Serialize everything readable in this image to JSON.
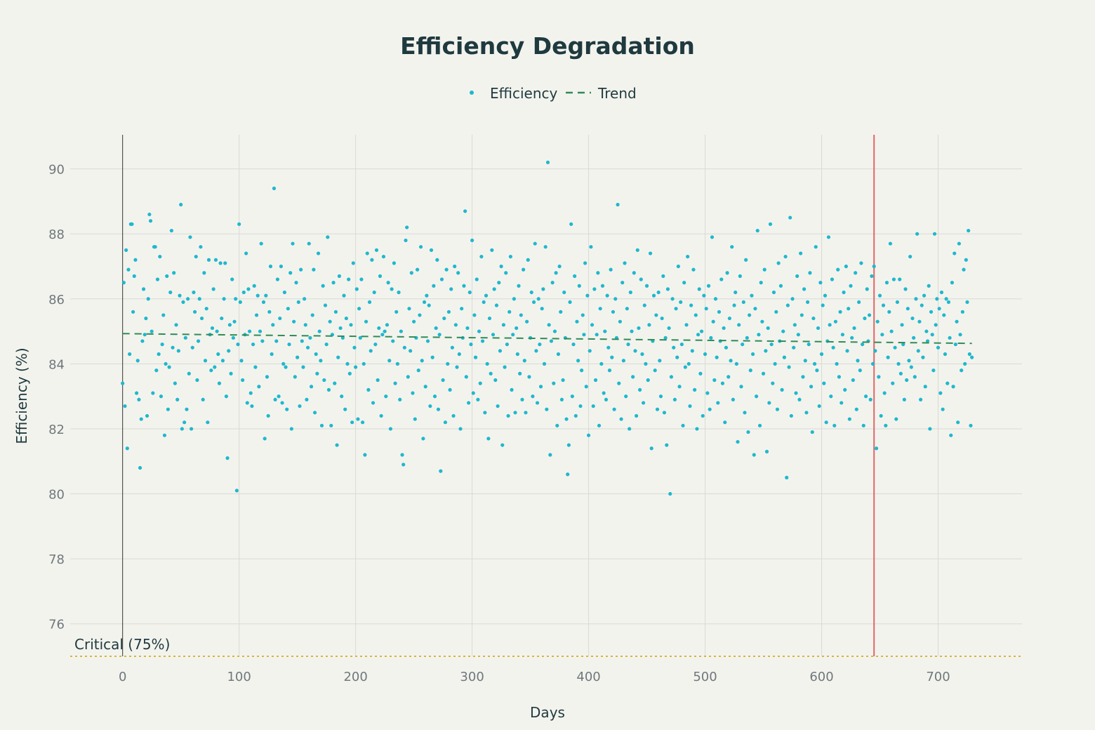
{
  "colors": {
    "background": "#f3f3ee",
    "points": "#1fb8cd",
    "trend": "#2e8b57",
    "marker_line": "#e06666",
    "critical": "#d2b83c",
    "text": "#1f3a3f",
    "grid": "#d9dad5"
  },
  "chart_data": {
    "type": "scatter",
    "title": "Efficiency Degradation",
    "xlabel": "Days",
    "ylabel": "Efficiency (%)",
    "xlim": [
      -45,
      772
    ],
    "ylim": [
      75,
      91.05
    ],
    "xticks": [
      0,
      100,
      200,
      300,
      400,
      500,
      600,
      700
    ],
    "yticks": [
      76,
      78,
      80,
      82,
      84,
      86,
      88,
      90
    ],
    "grid": true,
    "legend": {
      "placement": "top-center",
      "entries": [
        "Efficiency",
        "Trend"
      ]
    },
    "series": [
      {
        "name": "Efficiency",
        "mode": "markers",
        "x_start": 0,
        "x_step": 1,
        "y": [
          83.4,
          86.5,
          82.7,
          87.5,
          81.4,
          86.9,
          84.3,
          88.3,
          88.3,
          85.6,
          86.7,
          87.2,
          83.1,
          84.1,
          82.9,
          80.8,
          82.3,
          84.7,
          86.3,
          84.9,
          85.4,
          82.4,
          86.0,
          88.6,
          88.4,
          85.0,
          83.1,
          87.6,
          87.6,
          83.8,
          86.6,
          84.3,
          87.3,
          83.0,
          84.6,
          85.5,
          81.8,
          84.0,
          86.7,
          82.6,
          83.9,
          86.2,
          88.1,
          84.5,
          86.8,
          83.4,
          85.2,
          82.9,
          84.4,
          86.1,
          88.9,
          82.0,
          85.9,
          82.2,
          84.8,
          82.6,
          86.0,
          83.7,
          87.9,
          82.0,
          84.5,
          86.2,
          85.6,
          87.3,
          83.5,
          84.7,
          86.0,
          87.6,
          85.4,
          82.9,
          86.8,
          84.1,
          85.7,
          82.2,
          87.2,
          84.9,
          83.8,
          85.1,
          86.3,
          83.9,
          87.2,
          85.0,
          84.3,
          83.4,
          87.1,
          85.4,
          84.1,
          86.0,
          87.1,
          83.0,
          81.1,
          84.4,
          85.2,
          83.7,
          86.6,
          84.8,
          85.3,
          86.0,
          80.1,
          84.6,
          88.3,
          85.9,
          84.1,
          83.5,
          86.2,
          84.9,
          87.4,
          82.8,
          86.3,
          85.0,
          83.1,
          82.7,
          84.6,
          86.4,
          83.9,
          85.5,
          86.1,
          83.3,
          85.0,
          87.7,
          84.7,
          85.9,
          81.7,
          86.1,
          83.6,
          82.4,
          85.6,
          87.0,
          84.3,
          85.2,
          89.4,
          82.9,
          84.7,
          86.6,
          83.0,
          85.4,
          87.0,
          82.8,
          84.0,
          86.2,
          83.9,
          82.6,
          85.7,
          84.6,
          86.8,
          82.0,
          87.7,
          85.3,
          83.6,
          86.5,
          84.2,
          85.9,
          82.7,
          86.9,
          84.7,
          83.9,
          86.0,
          85.2,
          82.9,
          84.5,
          87.7,
          84.8,
          83.3,
          85.5,
          86.9,
          82.5,
          84.3,
          83.7,
          87.4,
          85.0,
          84.1,
          82.1,
          86.4,
          83.5,
          85.8,
          84.6,
          87.9,
          83.2,
          85.3,
          82.1,
          84.9,
          86.5,
          83.4,
          85.6,
          81.5,
          84.2,
          86.7,
          85.1,
          83.0,
          84.8,
          86.1,
          82.6,
          85.4,
          84.0,
          86.6,
          83.7,
          85.2,
          82.2,
          87.1,
          84.5,
          83.9,
          86.3,
          82.3,
          85.7,
          84.8,
          86.6,
          82.2,
          84.0,
          81.2,
          85.3,
          87.4,
          83.2,
          85.9,
          84.4,
          87.2,
          82.8,
          86.2,
          84.6,
          87.5,
          83.5,
          85.1,
          86.7,
          82.4,
          84.9,
          87.3,
          85.0,
          83.0,
          85.2,
          86.5,
          84.1,
          82.0,
          86.3,
          84.7,
          87.1,
          83.4,
          85.6,
          84.0,
          86.2,
          82.9,
          85.0,
          81.2,
          80.9,
          84.5,
          87.8,
          88.2,
          83.6,
          85.7,
          84.4,
          86.8,
          83.1,
          85.3,
          82.3,
          84.8,
          86.9,
          83.8,
          85.5,
          87.6,
          84.1,
          81.7,
          85.9,
          83.3,
          86.1,
          84.7,
          85.8,
          82.7,
          87.5,
          84.2,
          86.4,
          83.0,
          85.1,
          87.2,
          82.6,
          84.9,
          80.7,
          86.6,
          83.5,
          85.4,
          82.2,
          86.9,
          84.0,
          85.6,
          83.2,
          86.3,
          84.5,
          82.4,
          87.0,
          85.2,
          83.9,
          86.8,
          84.3,
          82.0,
          85.7,
          84.8,
          86.4,
          88.7,
          83.6,
          85.1,
          82.8,
          86.2,
          84.6,
          87.8,
          83.1,
          85.5,
          84.2,
          86.6,
          82.9,
          85.0,
          83.4,
          87.3,
          84.7,
          85.9,
          82.5,
          86.1,
          84.0,
          81.7,
          85.4,
          83.7,
          87.5,
          84.9,
          86.3,
          83.5,
          85.8,
          82.7,
          86.5,
          84.4,
          87.0,
          81.5,
          85.2,
          83.9,
          86.8,
          84.6,
          82.4,
          85.6,
          87.3,
          83.2,
          84.9,
          86.0,
          82.5,
          85.1,
          84.3,
          86.4,
          83.7,
          85.5,
          82.9,
          86.9,
          84.1,
          82.5,
          85.3,
          87.2,
          83.6,
          84.8,
          86.2,
          83.0,
          85.9,
          87.7,
          84.4,
          82.8,
          86.0,
          84.6,
          83.3,
          85.7,
          86.3,
          84.0,
          87.6,
          82.6,
          90.2,
          85.2,
          81.2,
          84.7,
          86.5,
          83.4,
          85.0,
          86.8,
          82.1,
          84.3,
          87.0,
          85.6,
          82.9,
          83.5,
          86.2,
          84.8,
          82.3,
          80.6,
          81.5,
          85.9,
          88.3,
          83.0,
          84.6,
          86.7,
          82.4,
          85.3,
          84.1,
          86.4,
          82.7,
          83.8,
          85.5,
          84.9,
          87.1,
          83.3,
          86.1,
          81.8,
          84.4,
          87.6,
          85.2,
          82.7,
          86.3,
          83.5,
          84.9,
          86.8,
          82.1,
          85.7,
          84.0,
          86.4,
          83.1,
          85.0,
          82.9,
          86.1,
          84.5,
          83.8,
          86.9,
          84.2,
          85.6,
          82.6,
          86.0,
          84.8,
          88.9,
          83.4,
          85.3,
          82.3,
          86.5,
          84.1,
          87.1,
          83.0,
          85.7,
          84.6,
          82.0,
          86.2,
          85.0,
          83.6,
          86.8,
          84.4,
          82.4,
          87.5,
          85.1,
          83.2,
          86.6,
          84.3,
          82.8,
          85.8,
          84.0,
          86.4,
          83.5,
          85.2,
          87.4,
          81.4,
          84.7,
          86.1,
          83.8,
          85.5,
          82.6,
          86.2,
          84.1,
          83.0,
          85.4,
          86.7,
          82.5,
          84.8,
          81.5,
          86.3,
          85.1,
          80.0,
          83.6,
          86.0,
          84.5,
          82.9,
          85.7,
          84.2,
          87.0,
          83.3,
          85.9,
          84.6,
          82.1,
          86.5,
          83.9,
          85.2,
          87.3,
          84.0,
          82.7,
          85.8,
          84.4,
          86.9,
          83.2,
          85.5,
          82.0,
          84.9,
          86.3,
          83.7,
          85.0,
          82.4,
          86.1,
          84.3,
          85.7,
          83.1,
          86.4,
          82.6,
          84.8,
          87.9,
          85.3,
          83.5,
          86.0,
          84.2,
          82.8,
          85.6,
          84.7,
          86.6,
          83.4,
          85.1,
          82.2,
          84.5,
          86.8,
          83.6,
          85.4,
          84.1,
          87.6,
          82.9,
          85.8,
          86.2,
          84.0,
          81.6,
          85.2,
          86.7,
          83.3,
          84.6,
          85.9,
          82.5,
          87.2,
          84.8,
          81.9,
          85.5,
          83.8,
          86.1,
          84.3,
          81.2,
          85.7,
          83.0,
          88.1,
          84.9,
          82.1,
          86.5,
          85.3,
          83.7,
          86.9,
          84.4,
          81.3,
          85.1,
          82.8,
          88.3,
          84.6,
          83.4,
          86.2,
          84.0,
          85.6,
          82.6,
          87.1,
          84.7,
          86.4,
          83.2,
          85.0,
          84.2,
          87.3,
          80.5,
          85.8,
          83.9,
          88.5,
          82.4,
          86.0,
          84.5,
          85.2,
          83.1,
          86.7,
          84.9,
          82.9,
          87.4,
          85.5,
          83.6,
          86.3,
          84.1,
          82.5,
          85.9,
          84.6,
          86.8,
          83.3,
          81.9,
          85.4,
          84.0,
          87.6,
          83.8,
          85.1,
          82.7,
          86.5,
          84.3,
          85.8,
          83.4,
          86.1,
          82.2,
          84.7,
          87.9,
          85.2,
          83.0,
          86.6,
          84.5,
          82.1,
          85.3,
          84.0,
          86.9,
          83.6,
          85.6,
          82.8,
          84.9,
          86.2,
          83.2,
          87.0,
          84.4,
          85.7,
          82.3,
          86.4,
          84.8,
          83.5,
          85.1,
          86.8,
          82.6,
          84.1,
          85.9,
          83.8,
          87.1,
          84.6,
          82.1,
          85.4,
          83.0,
          86.3,
          84.7,
          85.5,
          82.9,
          86.7,
          84.0,
          87.0,
          84.4,
          81.4,
          85.3,
          83.6,
          86.1,
          82.4,
          84.9,
          85.8,
          83.1,
          82.1,
          86.5,
          84.2,
          85.6,
          87.7,
          85.0,
          83.4,
          86.6,
          84.5,
          82.3,
          85.9,
          84.0,
          86.6,
          83.7,
          85.2,
          84.6,
          82.9,
          86.3,
          83.5,
          85.7,
          84.1,
          87.3,
          83.9,
          85.4,
          84.8,
          83.6,
          86.0,
          88.0,
          84.4,
          85.3,
          82.9,
          85.8,
          84.2,
          86.1,
          83.3,
          85.0,
          84.7,
          86.4,
          82.0,
          85.6,
          84.9,
          83.8,
          88.0,
          85.2,
          86.0,
          84.5,
          85.7,
          83.1,
          86.2,
          82.6,
          85.5,
          84.3,
          86.0,
          83.4,
          85.9,
          84.8,
          81.8,
          86.5,
          83.3,
          87.4,
          84.6,
          85.3,
          82.2,
          87.7,
          84.9,
          83.8,
          85.6,
          86.9,
          84.0,
          87.2,
          85.9,
          88.1,
          84.3,
          82.1,
          84.2
        ]
      },
      {
        "name": "Trend",
        "mode": "lines",
        "dash": "dash",
        "x": [
          0,
          729
        ],
        "y": [
          84.93,
          84.63
        ]
      }
    ],
    "shapes": [
      {
        "type": "hline",
        "y": 75,
        "style": "dotted",
        "label": "Critical (75%)"
      },
      {
        "type": "vline",
        "x": 645,
        "style": "solid"
      }
    ]
  }
}
